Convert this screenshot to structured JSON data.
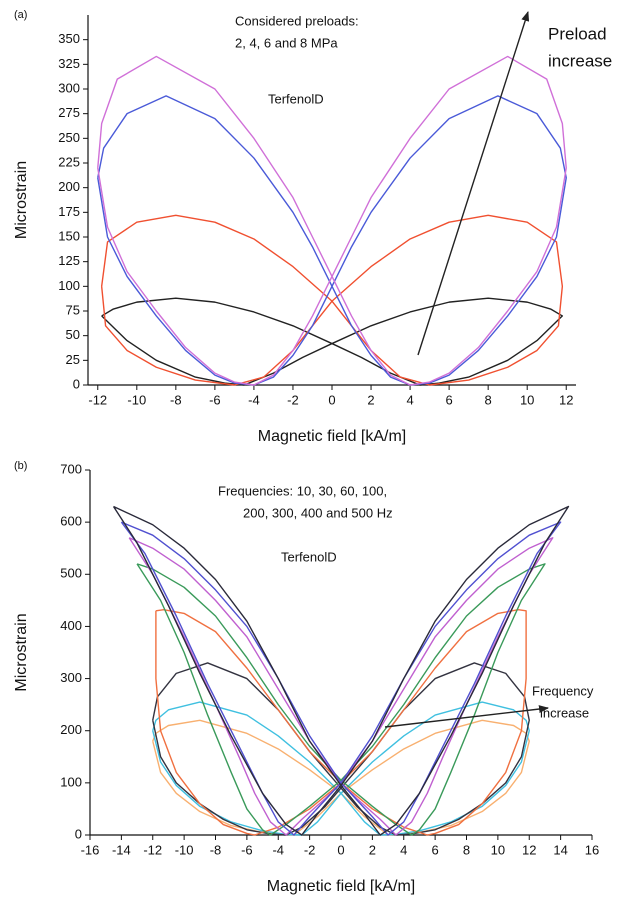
{
  "chart_data": [
    {
      "type": "line",
      "xlabel": "Magnetic field [kA/m]",
      "ylabel": "Microstrain",
      "annotations": [
        "(a)",
        "Considered preloads:",
        "2, 4, 6 and 8 MPa",
        "TerfenolD",
        "Preload",
        "increase"
      ],
      "xlim": [
        -12.5,
        12.5
      ],
      "ylim": [
        0,
        375
      ],
      "xticks": [
        -12,
        -10,
        -8,
        -6,
        -4,
        -2,
        0,
        2,
        4,
        6,
        8,
        10,
        12
      ],
      "yticks": [
        0,
        25,
        50,
        75,
        100,
        125,
        150,
        175,
        200,
        225,
        250,
        275,
        300,
        325,
        350
      ],
      "series": [
        {
          "color": "#222222",
          "x": [
            -11.8,
            -10.5,
            -9,
            -7,
            -5.5,
            -4.5,
            -3,
            -1.5,
            0,
            2,
            4,
            6,
            8,
            10,
            11.2,
            11.8,
            10.5,
            9,
            7,
            5.5,
            4.5,
            3,
            1.5,
            0,
            -2,
            -4,
            -6,
            -8,
            -10,
            -11.2,
            -11.8
          ],
          "values": [
            70,
            45,
            25,
            8,
            2,
            0,
            12,
            28,
            42,
            60,
            74,
            84,
            88,
            84,
            77,
            70,
            45,
            25,
            8,
            2,
            0,
            12,
            28,
            42,
            60,
            74,
            84,
            88,
            84,
            77,
            70
          ]
        },
        {
          "color": "#f05030",
          "x": [
            -11.8,
            -11.6,
            -10.5,
            -9,
            -7,
            -5,
            -3.5,
            -2,
            0,
            2,
            4,
            6,
            8,
            10,
            11.5,
            11.8,
            11.6,
            10.5,
            9,
            7,
            5,
            3.5,
            2,
            0,
            -2,
            -4,
            -6,
            -8,
            -10,
            -11.5,
            -11.8
          ],
          "values": [
            100,
            60,
            35,
            18,
            5,
            0,
            8,
            35,
            85,
            120,
            148,
            165,
            172,
            165,
            145,
            100,
            60,
            35,
            18,
            5,
            0,
            8,
            35,
            85,
            120,
            148,
            165,
            172,
            165,
            145,
            100
          ]
        },
        {
          "color": "#4a5ad8",
          "x": [
            -12,
            -11.5,
            -10.5,
            -9,
            -7.5,
            -6,
            -5,
            -4,
            -3,
            -2,
            -1,
            0,
            1,
            2,
            4,
            6,
            8.5,
            10.5,
            11.7,
            12,
            11.5,
            10.5,
            9,
            7.5,
            6,
            5,
            4,
            3,
            2,
            1,
            0,
            -1,
            -2,
            -4,
            -6,
            -8.5,
            -10.5,
            -11.7,
            -12
          ],
          "values": [
            210,
            150,
            110,
            70,
            35,
            10,
            2,
            0,
            8,
            30,
            60,
            100,
            140,
            175,
            230,
            270,
            293,
            275,
            240,
            210,
            150,
            110,
            70,
            35,
            10,
            2,
            0,
            8,
            30,
            60,
            100,
            140,
            175,
            230,
            270,
            293,
            275,
            240,
            210
          ]
        },
        {
          "color": "#d070d8",
          "x": [
            -12,
            -11.5,
            -10.5,
            -9,
            -7.5,
            -6,
            -5,
            -4,
            -3,
            -2,
            -1,
            0,
            1,
            2,
            4,
            6,
            9,
            11,
            11.8,
            12,
            11.5,
            10.5,
            9,
            7.5,
            6,
            5,
            4,
            3,
            2,
            1,
            0,
            -1,
            -2,
            -4,
            -6,
            -9,
            -11,
            -11.8,
            -12
          ],
          "values": [
            220,
            160,
            115,
            75,
            38,
            12,
            3,
            0,
            10,
            35,
            70,
            110,
            150,
            190,
            250,
            300,
            333,
            310,
            265,
            220,
            160,
            115,
            75,
            38,
            12,
            3,
            0,
            10,
            35,
            70,
            110,
            150,
            190,
            250,
            300,
            333,
            310,
            265,
            220
          ]
        }
      ]
    },
    {
      "type": "line",
      "xlabel": "Magnetic field [kA/m]",
      "ylabel": "Microstrain",
      "annotations": [
        "(b)",
        "Frequencies: 10, 30, 60, 100,",
        "200, 300, 400 and 500 Hz",
        "TerfenolD",
        "Frequency",
        "increase"
      ],
      "xlim": [
        -16,
        16
      ],
      "ylim": [
        0,
        700
      ],
      "xticks": [
        -16,
        -14,
        -12,
        -10,
        -8,
        -6,
        -4,
        -2,
        0,
        2,
        4,
        6,
        8,
        10,
        12,
        14,
        16
      ],
      "yticks": [
        0,
        100,
        200,
        300,
        400,
        500,
        600,
        700
      ],
      "series": [
        {
          "color": "#f8b070",
          "x": [
            -12,
            -11.5,
            -10.5,
            -9,
            -7,
            -5,
            -3,
            -1.5,
            0,
            2,
            4,
            6,
            9,
            11,
            11.8,
            12,
            11.5,
            10.5,
            9,
            7,
            5,
            3,
            1.5,
            0,
            -2,
            -4,
            -6,
            -9,
            -11,
            -11.8,
            -12
          ],
          "values": [
            180,
            120,
            80,
            45,
            18,
            5,
            0,
            35,
            80,
            125,
            165,
            195,
            220,
            210,
            195,
            180,
            120,
            80,
            45,
            18,
            5,
            0,
            35,
            80,
            125,
            165,
            195,
            220,
            210,
            195,
            180
          ]
        },
        {
          "color": "#40c0e0",
          "x": [
            -12,
            -11.5,
            -10.5,
            -9,
            -7,
            -5,
            -3.5,
            -2.5,
            -1.5,
            0,
            2,
            4,
            6,
            9,
            11,
            11.8,
            12,
            11.5,
            10.5,
            9,
            7,
            5,
            3.5,
            2.5,
            1.5,
            0,
            -2,
            -4,
            -6,
            -9,
            -11,
            -11.8,
            -12
          ],
          "values": [
            200,
            140,
            95,
            55,
            25,
            8,
            1,
            0,
            25,
            80,
            140,
            190,
            230,
            255,
            240,
            220,
            200,
            140,
            95,
            55,
            25,
            8,
            1,
            0,
            25,
            80,
            140,
            190,
            230,
            255,
            240,
            220,
            200
          ]
        },
        {
          "color": "#333340",
          "x": [
            -12,
            -11.5,
            -10.5,
            -9,
            -7.5,
            -6,
            -4.5,
            -3.5,
            -2.5,
            -1,
            0,
            2,
            4,
            6,
            8.5,
            10.5,
            11.7,
            12,
            11.5,
            10.5,
            9,
            7.5,
            6,
            4.5,
            3.5,
            2.5,
            1,
            0,
            -2,
            -4,
            -6,
            -8.5,
            -10.5,
            -11.7,
            -12
          ],
          "values": [
            220,
            150,
            100,
            60,
            30,
            10,
            2,
            0,
            15,
            55,
            90,
            160,
            240,
            300,
            330,
            310,
            265,
            220,
            150,
            100,
            60,
            30,
            10,
            2,
            0,
            15,
            55,
            90,
            160,
            240,
            300,
            330,
            310,
            265,
            220
          ]
        },
        {
          "color": "#f07040",
          "x": [
            -11.8,
            -11.8,
            -11.5,
            -10.5,
            -9,
            -7.5,
            -6,
            -5.5,
            -4,
            -2,
            0,
            2,
            4,
            6,
            8,
            10,
            11.3,
            11.8,
            11.8,
            11.5,
            10.5,
            9,
            7.5,
            6,
            5.5,
            4,
            2,
            0,
            -2,
            -4,
            -6,
            -8,
            -10,
            -11.3,
            -11.8
          ],
          "values": [
            430,
            300,
            200,
            120,
            60,
            20,
            3,
            0,
            15,
            50,
            100,
            160,
            240,
            320,
            390,
            425,
            432,
            430,
            300,
            200,
            120,
            60,
            20,
            3,
            0,
            15,
            50,
            100,
            160,
            240,
            320,
            390,
            425,
            432,
            430
          ]
        },
        {
          "color": "#3a9a5a",
          "x": [
            -13,
            -11.5,
            -10,
            -8.5,
            -7,
            -6,
            -5,
            -4.5,
            -3.5,
            -2,
            0,
            2,
            4,
            6,
            8,
            10,
            12,
            13,
            11.5,
            10,
            8.5,
            7,
            6,
            5,
            4.5,
            3.5,
            2,
            0,
            -2,
            -4,
            -6,
            -8,
            -10,
            -12,
            -13
          ],
          "values": [
            520,
            450,
            350,
            230,
            120,
            50,
            10,
            0,
            20,
            55,
            105,
            170,
            250,
            340,
            420,
            475,
            510,
            520,
            450,
            350,
            230,
            120,
            50,
            10,
            0,
            20,
            55,
            105,
            170,
            250,
            340,
            420,
            475,
            510,
            520
          ]
        },
        {
          "color": "#c060d0",
          "x": [
            -13.5,
            -12,
            -10,
            -8,
            -6.5,
            -5.5,
            -4.5,
            -3.5,
            -2.5,
            -1,
            0,
            2,
            4,
            6,
            8,
            10,
            12,
            13.5,
            12,
            10,
            8,
            6.5,
            5.5,
            4.5,
            3.5,
            2.5,
            1,
            0,
            -2,
            -4,
            -6,
            -8,
            -10,
            -12,
            -13.5
          ],
          "values": [
            570,
            500,
            380,
            250,
            150,
            80,
            25,
            0,
            30,
            70,
            100,
            180,
            280,
            380,
            450,
            510,
            550,
            570,
            500,
            380,
            250,
            150,
            80,
            25,
            0,
            30,
            70,
            100,
            180,
            280,
            380,
            450,
            510,
            550,
            570
          ]
        },
        {
          "color": "#5050d0",
          "x": [
            -14,
            -12.5,
            -10.5,
            -8.5,
            -6.5,
            -5,
            -4,
            -3,
            -2,
            0,
            2,
            4,
            6,
            8,
            10,
            12,
            14,
            12.5,
            10.5,
            8.5,
            6.5,
            5,
            4,
            3,
            2,
            0,
            -2,
            -4,
            -6,
            -8,
            -10,
            -12,
            -14
          ],
          "values": [
            600,
            540,
            420,
            290,
            170,
            80,
            25,
            0,
            35,
            100,
            190,
            300,
            400,
            470,
            530,
            575,
            600,
            540,
            420,
            290,
            170,
            80,
            25,
            0,
            35,
            100,
            190,
            300,
            400,
            470,
            530,
            575,
            600
          ]
        },
        {
          "color": "#2a2a3a",
          "x": [
            -14.5,
            -13,
            -11,
            -9,
            -7,
            -5,
            -3.5,
            -2.5,
            -1.5,
            0,
            2,
            4,
            6,
            8,
            10,
            12,
            14.5,
            13,
            11,
            9,
            7,
            5,
            3.5,
            2.5,
            1.5,
            0,
            -2,
            -4,
            -6,
            -8,
            -10,
            -12,
            -14.5
          ],
          "values": [
            630,
            560,
            440,
            310,
            190,
            80,
            20,
            0,
            40,
            95,
            180,
            300,
            410,
            490,
            550,
            595,
            630,
            560,
            440,
            310,
            190,
            80,
            20,
            0,
            40,
            95,
            180,
            300,
            410,
            490,
            550,
            595,
            630
          ]
        }
      ]
    }
  ]
}
